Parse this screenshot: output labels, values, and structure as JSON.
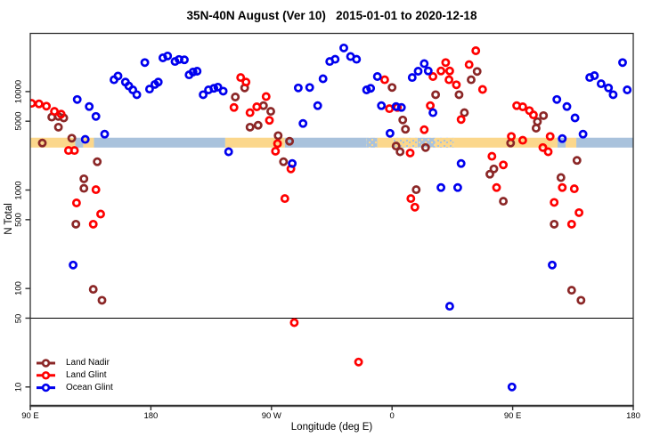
{
  "title": "35N-40N August (Ver 10)   2015-01-01 to 2020-12-18",
  "colors": {
    "land_nadir": "#8B2727",
    "land_glint": "#FF0000",
    "ocean_glint": "#0000EE",
    "band_land": "#FBD78C",
    "band_ocean": "#A9C2DC",
    "axis": "#2e2e2e",
    "axis_baseline": "#4a4a4a",
    "reference_line": "#000000"
  },
  "chart_data": {
    "type": "scatter",
    "title": "35N-40N August (Ver 10)   2015-01-01 to 2020-12-18",
    "xlabel": "Longitude (deg E)",
    "ylabel": "N Total",
    "x_domain": [
      90,
      540
    ],
    "x_domain_note": "longitude axis wraps: 90E to 180, 90W, 0, 90E, 180",
    "x_ticks": [
      {
        "deg": 90,
        "label": "90 E"
      },
      {
        "deg": 180,
        "label": "180"
      },
      {
        "deg": 270,
        "label": "90 W"
      },
      {
        "deg": 360,
        "label": "0"
      },
      {
        "deg": 450,
        "label": "90 E"
      },
      {
        "deg": 540,
        "label": "180"
      }
    ],
    "y_scale": "log10",
    "y_domain": [
      6.5,
      39000
    ],
    "y_ticks": [
      {
        "n": 10,
        "label": "10"
      },
      {
        "n": 50,
        "label": "50"
      },
      {
        "n": 100,
        "label": "100"
      },
      {
        "n": 500,
        "label": "500"
      },
      {
        "n": 1000,
        "label": "1000"
      },
      {
        "n": 5000,
        "label": "5000"
      },
      {
        "n": 10000,
        "label": "10000"
      }
    ],
    "reference_line_n": 50,
    "surface_band": {
      "n_top": 3400,
      "n_bottom": 2700,
      "segments": [
        {
          "from": 90,
          "to": 123.5,
          "type": "land"
        },
        {
          "from": 123.5,
          "to": 129.5,
          "type": "ocean"
        },
        {
          "from": 129.5,
          "to": 137.5,
          "type": "land"
        },
        {
          "from": 137.5,
          "to": 235.5,
          "type": "ocean"
        },
        {
          "from": 235.5,
          "to": 280,
          "type": "land"
        },
        {
          "from": 280,
          "to": 341,
          "type": "ocean"
        },
        {
          "from": 341,
          "to": 349,
          "type": "mixed_ocean"
        },
        {
          "from": 349,
          "to": 361,
          "type": "land"
        },
        {
          "from": 361,
          "to": 379,
          "type": "mixed_land"
        },
        {
          "from": 379,
          "to": 392,
          "type": "mixed_ocean"
        },
        {
          "from": 392,
          "to": 406,
          "type": "mixed_land"
        },
        {
          "from": 406,
          "to": 483.5,
          "type": "land"
        },
        {
          "from": 483.5,
          "to": 489.5,
          "type": "ocean"
        },
        {
          "from": 489.5,
          "to": 497.5,
          "type": "land"
        },
        {
          "from": 497.5,
          "to": 540,
          "type": "ocean"
        }
      ]
    },
    "legend": [
      {
        "label": "Land Nadir",
        "series": "land_nadir"
      },
      {
        "label": "Land Glint",
        "series": "land_glint"
      },
      {
        "label": "Ocean Glint",
        "series": "ocean_glint"
      }
    ],
    "series": [
      {
        "name": "Land Nadir",
        "color_key": "land_nadir",
        "points": [
          [
            106,
            5500
          ],
          [
            111,
            5600
          ],
          [
            115,
            5400
          ],
          [
            111,
            4350
          ],
          [
            99,
            3000
          ],
          [
            121,
            3360
          ],
          [
            140,
            1940
          ],
          [
            130,
            1300
          ],
          [
            130,
            1040
          ],
          [
            124,
            450
          ],
          [
            137,
            98
          ],
          [
            143.5,
            76
          ],
          [
            250,
            10900
          ],
          [
            243,
            8800
          ],
          [
            264,
            7200
          ],
          [
            269.5,
            6300
          ],
          [
            254,
            4350
          ],
          [
            260,
            4550
          ],
          [
            275,
            3570
          ],
          [
            283.5,
            3130
          ],
          [
            279,
            1940
          ],
          [
            360,
            11000
          ],
          [
            368,
            5150
          ],
          [
            370,
            4150
          ],
          [
            363,
            2800
          ],
          [
            366,
            2450
          ],
          [
            385,
            2700
          ],
          [
            378,
            1010
          ],
          [
            423.5,
            16000
          ],
          [
            419,
            13200
          ],
          [
            410,
            9300
          ],
          [
            392.5,
            9300
          ],
          [
            414,
            6100
          ],
          [
            473,
            5700
          ],
          [
            468.5,
            4950
          ],
          [
            467.5,
            4250
          ],
          [
            448.5,
            3000
          ],
          [
            498,
            2000
          ],
          [
            486,
            1340
          ],
          [
            433,
            1450
          ],
          [
            436,
            1640
          ],
          [
            443,
            770
          ],
          [
            481,
            450
          ],
          [
            494,
            96
          ],
          [
            501,
            76
          ]
        ]
      },
      {
        "name": "Land Glint",
        "color_key": "land_glint",
        "points": [
          [
            91,
            7600
          ],
          [
            96.5,
            7500
          ],
          [
            102,
            7100
          ],
          [
            108,
            6300
          ],
          [
            113,
            5900
          ],
          [
            118.5,
            2520
          ],
          [
            123,
            2520
          ],
          [
            124.5,
            740
          ],
          [
            139,
            1010
          ],
          [
            137,
            450
          ],
          [
            142.5,
            570
          ],
          [
            247,
            13900
          ],
          [
            251,
            12500
          ],
          [
            242,
            6900
          ],
          [
            254,
            6100
          ],
          [
            259,
            7000
          ],
          [
            266,
            8900
          ],
          [
            268.5,
            5100
          ],
          [
            274.5,
            2960
          ],
          [
            273,
            2480
          ],
          [
            280,
            820
          ],
          [
            284.5,
            1640
          ],
          [
            287,
            45
          ],
          [
            335,
            17.9
          ],
          [
            354.5,
            13200
          ],
          [
            358,
            6700
          ],
          [
            364,
            6900
          ],
          [
            373.5,
            2380
          ],
          [
            384,
            4100
          ],
          [
            388.5,
            7200
          ],
          [
            374,
            820
          ],
          [
            377,
            670
          ],
          [
            400,
            19700
          ],
          [
            422.5,
            26000
          ],
          [
            396.5,
            16200
          ],
          [
            403,
            16200
          ],
          [
            402.5,
            13200
          ],
          [
            408,
            11700
          ],
          [
            390.5,
            14200
          ],
          [
            417.5,
            18800
          ],
          [
            427.5,
            10500
          ],
          [
            411.5,
            5200
          ],
          [
            453,
            7200
          ],
          [
            457.5,
            7000
          ],
          [
            462.5,
            6400
          ],
          [
            465.5,
            5800
          ],
          [
            449,
            3500
          ],
          [
            457.5,
            3200
          ],
          [
            434.5,
            2200
          ],
          [
            443,
            1800
          ],
          [
            438,
            1060
          ],
          [
            478,
            3500
          ],
          [
            476.5,
            2450
          ],
          [
            472.5,
            2700
          ],
          [
            487,
            1060
          ],
          [
            496,
            1030
          ],
          [
            481,
            750
          ],
          [
            499.5,
            590
          ],
          [
            494,
            450
          ]
        ]
      },
      {
        "name": "Ocean Glint",
        "color_key": "ocean_glint",
        "points": [
          [
            122,
            173
          ],
          [
            125,
            8300
          ],
          [
            131,
            3270
          ],
          [
            134,
            7050
          ],
          [
            139,
            5600
          ],
          [
            145.5,
            3700
          ],
          [
            152.5,
            13200
          ],
          [
            155.5,
            14400
          ],
          [
            161,
            12500
          ],
          [
            163.5,
            11400
          ],
          [
            166.5,
            10400
          ],
          [
            169.5,
            9300
          ],
          [
            175.5,
            19700
          ],
          [
            179,
            10600
          ],
          [
            183,
            11800
          ],
          [
            185.5,
            12500
          ],
          [
            189,
            22000
          ],
          [
            192.5,
            23000
          ],
          [
            198,
            20200
          ],
          [
            201,
            21200
          ],
          [
            205,
            21000
          ],
          [
            208.5,
            14800
          ],
          [
            211.5,
            15800
          ],
          [
            214.5,
            16100
          ],
          [
            219,
            9300
          ],
          [
            223,
            10400
          ],
          [
            227,
            10800
          ],
          [
            230,
            11100
          ],
          [
            234,
            10100
          ],
          [
            238,
            2450
          ],
          [
            285.5,
            1860
          ],
          [
            290,
            10900
          ],
          [
            293.5,
            4750
          ],
          [
            298.5,
            11000
          ],
          [
            304.5,
            7200
          ],
          [
            308.5,
            13500
          ],
          [
            313.5,
            20200
          ],
          [
            317.5,
            21300
          ],
          [
            324,
            27700
          ],
          [
            329,
            22700
          ],
          [
            333.5,
            21300
          ],
          [
            341,
            10400
          ],
          [
            344,
            10800
          ],
          [
            349,
            14200
          ],
          [
            352,
            7200
          ],
          [
            358.5,
            3770
          ],
          [
            363,
            7050
          ],
          [
            367,
            6900
          ],
          [
            375,
            13900
          ],
          [
            379.5,
            16100
          ],
          [
            384,
            19200
          ],
          [
            387,
            16200
          ],
          [
            390.5,
            6100
          ],
          [
            396.5,
            1060
          ],
          [
            403,
            66
          ],
          [
            409,
            1060
          ],
          [
            411.5,
            1860
          ],
          [
            449.5,
            10
          ],
          [
            479.5,
            173
          ],
          [
            483,
            8300
          ],
          [
            487,
            3330
          ],
          [
            490.5,
            7050
          ],
          [
            496.5,
            5400
          ],
          [
            502.5,
            3700
          ],
          [
            507.5,
            13900
          ],
          [
            511,
            14500
          ],
          [
            516,
            12000
          ],
          [
            521.5,
            10900
          ],
          [
            525,
            9300
          ],
          [
            532,
            19700
          ],
          [
            535.5,
            10400
          ]
        ]
      }
    ]
  }
}
